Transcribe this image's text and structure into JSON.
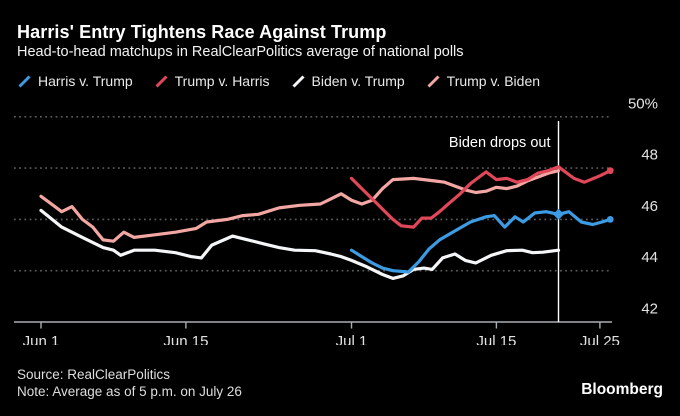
{
  "header": {
    "title": "Harris' Entry Tightens Race Against Trump",
    "subtitle": "Head-to-head matchups in RealClearPolitics average of national polls"
  },
  "legend": {
    "items": [
      {
        "label": "Harris v. Trump",
        "color": "#3d9be3"
      },
      {
        "label": "Trump v. Harris",
        "color": "#e0485a"
      },
      {
        "label": "Biden v. Trump",
        "color": "#f4f6f8"
      },
      {
        "label": "Trump v. Biden",
        "color": "#f3a7a3"
      }
    ]
  },
  "chart_data": {
    "type": "line",
    "title": "Harris' Entry Tightens Race Against Trump",
    "subtitle": "Head-to-head matchups in RealClearPolitics average of national polls",
    "x_unit": "days since Jun 1",
    "xlim": [
      -2.6,
      57
    ],
    "ylim": [
      42,
      50.5
    ],
    "grid": "dotted horizontal lines at each y tick, solid baseline at 42",
    "legend_position": "top",
    "x_ticks": [
      {
        "day": 0,
        "label": "Jun 1"
      },
      {
        "day": 14,
        "label": "Jun 15"
      },
      {
        "day": 30,
        "label": "Jul 1"
      },
      {
        "day": 44,
        "label": "Jul 15"
      },
      {
        "day": 54,
        "label": "Jul 25"
      }
    ],
    "y_ticks": [
      {
        "value": 50,
        "label": "50%"
      },
      {
        "value": 48,
        "label": "48"
      },
      {
        "value": 46,
        "label": "46"
      },
      {
        "value": 44,
        "label": "44"
      },
      {
        "value": 42,
        "label": "42"
      }
    ],
    "annotation": {
      "label": "Biden drops out",
      "day": 50,
      "line_color": "#ffffff"
    },
    "series": [
      {
        "name": "Trump v. Biden",
        "color": "#f3a7a3",
        "points": [
          [
            0,
            46.9
          ],
          [
            1,
            46.6
          ],
          [
            2,
            46.3
          ],
          [
            3,
            46.5
          ],
          [
            4,
            46.0
          ],
          [
            5,
            45.7
          ],
          [
            6,
            45.2
          ],
          [
            7,
            45.15
          ],
          [
            8,
            45.5
          ],
          [
            9,
            45.3
          ],
          [
            11,
            45.4
          ],
          [
            13,
            45.5
          ],
          [
            15,
            45.65
          ],
          [
            16,
            45.9
          ],
          [
            18,
            46.0
          ],
          [
            19.5,
            46.15
          ],
          [
            21,
            46.2
          ],
          [
            23,
            46.45
          ],
          [
            25,
            46.55
          ],
          [
            27,
            46.6
          ],
          [
            28,
            46.8
          ],
          [
            29,
            47.0
          ],
          [
            30,
            46.75
          ],
          [
            31,
            46.6
          ],
          [
            32,
            46.75
          ],
          [
            33,
            47.2
          ],
          [
            34,
            47.55
          ],
          [
            36,
            47.6
          ],
          [
            37,
            47.55
          ],
          [
            38,
            47.5
          ],
          [
            39,
            47.45
          ],
          [
            40,
            47.3
          ],
          [
            41,
            47.15
          ],
          [
            42,
            47.05
          ],
          [
            43,
            47.1
          ],
          [
            44,
            47.25
          ],
          [
            45,
            47.2
          ],
          [
            46,
            47.3
          ],
          [
            47,
            47.5
          ],
          [
            48,
            47.65
          ],
          [
            49,
            47.8
          ],
          [
            50,
            47.9
          ]
        ],
        "markers": []
      },
      {
        "name": "Biden v. Trump",
        "color": "#f4f6f8",
        "points": [
          [
            0,
            46.35
          ],
          [
            2,
            45.7
          ],
          [
            4,
            45.3
          ],
          [
            6,
            44.9
          ],
          [
            7,
            44.8
          ],
          [
            7.7,
            44.6
          ],
          [
            9,
            44.8
          ],
          [
            11,
            44.8
          ],
          [
            13,
            44.7
          ],
          [
            14.5,
            44.55
          ],
          [
            15.5,
            44.5
          ],
          [
            16.5,
            45.0
          ],
          [
            18.5,
            45.35
          ],
          [
            20,
            45.2
          ],
          [
            21.5,
            45.05
          ],
          [
            23,
            44.9
          ],
          [
            24.5,
            44.8
          ],
          [
            26.5,
            44.78
          ],
          [
            28,
            44.65
          ],
          [
            29,
            44.55
          ],
          [
            30,
            44.4
          ],
          [
            31.5,
            44.15
          ],
          [
            33,
            43.85
          ],
          [
            34,
            43.7
          ],
          [
            35,
            43.8
          ],
          [
            36,
            44.05
          ],
          [
            37,
            44.1
          ],
          [
            37.8,
            44.05
          ],
          [
            38.8,
            44.5
          ],
          [
            40,
            44.65
          ],
          [
            41,
            44.4
          ],
          [
            42,
            44.3
          ],
          [
            43.5,
            44.6
          ],
          [
            45,
            44.78
          ],
          [
            46.5,
            44.8
          ],
          [
            47.5,
            44.7
          ],
          [
            48.5,
            44.72
          ],
          [
            50,
            44.8
          ]
        ],
        "markers": []
      },
      {
        "name": "Harris v. Trump",
        "color": "#3d9be3",
        "points": [
          [
            30,
            44.8
          ],
          [
            31,
            44.55
          ],
          [
            32,
            44.3
          ],
          [
            33,
            44.1
          ],
          [
            34,
            44.0
          ],
          [
            35.5,
            43.95
          ],
          [
            36.5,
            44.35
          ],
          [
            37.5,
            44.85
          ],
          [
            38.5,
            45.2
          ],
          [
            40,
            45.55
          ],
          [
            41.5,
            45.9
          ],
          [
            43,
            46.1
          ],
          [
            43.8,
            46.15
          ],
          [
            44.8,
            45.7
          ],
          [
            45.8,
            46.1
          ],
          [
            46.6,
            45.9
          ],
          [
            47.7,
            46.25
          ],
          [
            48.8,
            46.3
          ],
          [
            50,
            46.2
          ],
          [
            51,
            46.3
          ],
          [
            52.2,
            45.9
          ],
          [
            53.3,
            45.8
          ],
          [
            54.2,
            45.9
          ],
          [
            55,
            46.0
          ]
        ],
        "markers": [
          {
            "day": 50,
            "value": 46.2,
            "shape": "diamond"
          },
          {
            "day": 55,
            "value": 46.0,
            "shape": "dot"
          }
        ]
      },
      {
        "name": "Trump v. Harris",
        "color": "#e0485a",
        "points": [
          [
            30,
            47.6
          ],
          [
            31,
            47.2
          ],
          [
            32.5,
            46.6
          ],
          [
            34,
            46.0
          ],
          [
            34.8,
            45.75
          ],
          [
            36,
            45.7
          ],
          [
            36.8,
            46.05
          ],
          [
            37.7,
            46.05
          ],
          [
            38.5,
            46.3
          ],
          [
            39.5,
            46.65
          ],
          [
            40.5,
            47.0
          ],
          [
            41.5,
            47.4
          ],
          [
            43,
            47.85
          ],
          [
            44,
            47.55
          ],
          [
            45,
            47.6
          ],
          [
            46,
            47.45
          ],
          [
            47,
            47.55
          ],
          [
            48,
            47.8
          ],
          [
            49,
            47.9
          ],
          [
            50,
            48.05
          ],
          [
            51.5,
            47.6
          ],
          [
            52.5,
            47.45
          ],
          [
            54,
            47.7
          ],
          [
            55,
            47.9
          ]
        ],
        "markers": [
          {
            "day": 55,
            "value": 47.9,
            "shape": "dot"
          }
        ]
      }
    ],
    "style": {
      "grid_color": "#5a5a5a",
      "axis_color": "#a9aeb3",
      "tick_label_color": "#e3e3e3",
      "annotation_text_color": "#ffffff",
      "background": "#000000"
    }
  },
  "footer": {
    "source": "Source: RealClearPolitics",
    "note": "Note: Average as of 5 p.m. on July 26",
    "brand": "Bloomberg"
  }
}
